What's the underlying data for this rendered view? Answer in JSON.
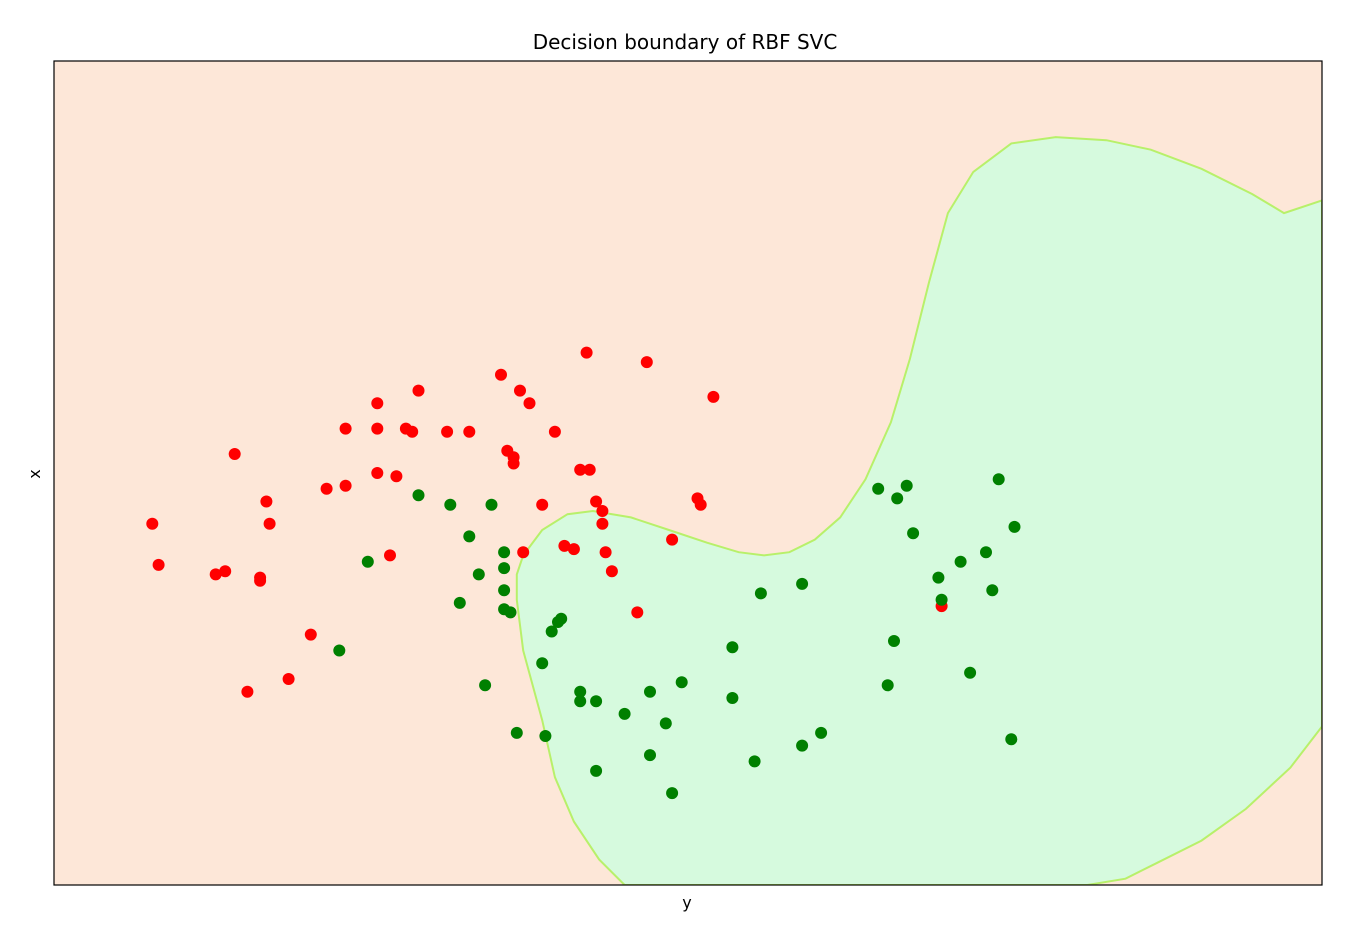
{
  "chart_data": {
    "type": "scatter",
    "title": "Decision boundary of RBF SVC",
    "xlabel": "y",
    "ylabel": "x",
    "xlim": [
      -1.5,
      2.5
    ],
    "ylim": [
      -1.0,
      1.6
    ],
    "ticks": "none",
    "grid": false,
    "legend": "none",
    "colors": {
      "region_class_0": "#fde7d8",
      "region_class_1": "#d6fade",
      "boundary": "#b8f06a",
      "class_0": "#ff0000",
      "class_1": "#008000"
    },
    "decision_boundary": [
      [
        0.3,
        -1.0
      ],
      [
        0.22,
        -0.92
      ],
      [
        0.14,
        -0.8
      ],
      [
        0.08,
        -0.66
      ],
      [
        0.04,
        -0.48
      ],
      [
        -0.02,
        -0.26
      ],
      [
        -0.04,
        -0.1
      ],
      [
        -0.04,
        -0.02
      ],
      [
        -0.02,
        0.04
      ],
      [
        0.04,
        0.12
      ],
      [
        0.12,
        0.17
      ],
      [
        0.2,
        0.18
      ],
      [
        0.32,
        0.16
      ],
      [
        0.44,
        0.12
      ],
      [
        0.56,
        0.08
      ],
      [
        0.66,
        0.05
      ],
      [
        0.74,
        0.04
      ],
      [
        0.82,
        0.05
      ],
      [
        0.9,
        0.09
      ],
      [
        0.98,
        0.16
      ],
      [
        1.06,
        0.28
      ],
      [
        1.14,
        0.46
      ],
      [
        1.2,
        0.66
      ],
      [
        1.26,
        0.9
      ],
      [
        1.32,
        1.12
      ],
      [
        1.4,
        1.25
      ],
      [
        1.52,
        1.34
      ],
      [
        1.66,
        1.36
      ],
      [
        1.82,
        1.35
      ],
      [
        1.96,
        1.32
      ],
      [
        2.12,
        1.26
      ],
      [
        2.28,
        1.18
      ],
      [
        2.38,
        1.12
      ],
      [
        2.5,
        1.16
      ],
      [
        2.5,
        -0.5
      ],
      [
        2.4,
        -0.63
      ],
      [
        2.26,
        -0.76
      ],
      [
        2.12,
        -0.86
      ],
      [
        1.98,
        -0.93
      ],
      [
        1.88,
        -0.98
      ],
      [
        1.76,
        -1.0
      ]
    ],
    "series": [
      {
        "class": 0,
        "points": [
          [
            -1.19,
            0.14
          ],
          [
            -1.17,
            0.01
          ],
          [
            -0.93,
            0.36
          ],
          [
            -0.89,
            -0.39
          ],
          [
            -0.83,
            0.21
          ],
          [
            -0.82,
            0.14
          ],
          [
            -0.85,
            -0.03
          ],
          [
            -0.85,
            -0.04
          ],
          [
            -0.96,
            -0.01
          ],
          [
            -0.99,
            -0.02
          ],
          [
            -0.76,
            -0.35
          ],
          [
            -0.69,
            -0.21
          ],
          [
            -0.64,
            0.25
          ],
          [
            -0.58,
            0.44
          ],
          [
            -0.58,
            0.26
          ],
          [
            -0.48,
            0.3
          ],
          [
            -0.48,
            0.44
          ],
          [
            -0.48,
            0.52
          ],
          [
            -0.44,
            0.04
          ],
          [
            -0.42,
            0.29
          ],
          [
            -0.39,
            0.44
          ],
          [
            -0.37,
            0.43
          ],
          [
            -0.35,
            0.56
          ],
          [
            -0.26,
            0.43
          ],
          [
            -0.19,
            0.43
          ],
          [
            -0.09,
            0.61
          ],
          [
            -0.03,
            0.56
          ],
          [
            -0.07,
            0.37
          ],
          [
            -0.05,
            0.35
          ],
          [
            0.0,
            0.52
          ],
          [
            -0.05,
            0.33
          ],
          [
            -0.02,
            0.05
          ],
          [
            0.04,
            0.2
          ],
          [
            0.08,
            0.43
          ],
          [
            0.11,
            0.07
          ],
          [
            0.14,
            0.06
          ],
          [
            0.16,
            0.31
          ],
          [
            0.19,
            0.31
          ],
          [
            0.18,
            0.68
          ],
          [
            0.21,
            0.21
          ],
          [
            0.23,
            0.14
          ],
          [
            0.23,
            0.18
          ],
          [
            0.24,
            0.05
          ],
          [
            0.26,
            -0.01
          ],
          [
            0.37,
            0.65
          ],
          [
            0.34,
            -0.14
          ],
          [
            0.45,
            0.09
          ],
          [
            0.58,
            0.54
          ],
          [
            0.53,
            0.22
          ],
          [
            0.54,
            0.2
          ],
          [
            1.3,
            -0.12
          ]
        ]
      },
      {
        "class": 1,
        "points": [
          [
            -0.35,
            0.23
          ],
          [
            -0.25,
            0.2
          ],
          [
            -0.12,
            0.2
          ],
          [
            -0.19,
            0.1
          ],
          [
            -0.51,
            0.02
          ],
          [
            -0.16,
            -0.02
          ],
          [
            -0.22,
            -0.11
          ],
          [
            -0.6,
            -0.26
          ],
          [
            -0.14,
            -0.37
          ],
          [
            -0.08,
            -0.07
          ],
          [
            -0.08,
            -0.13
          ],
          [
            -0.06,
            -0.14
          ],
          [
            -0.08,
            0.05
          ],
          [
            -0.08,
            0.0
          ],
          [
            -0.04,
            -0.52
          ],
          [
            0.04,
            -0.3
          ],
          [
            0.05,
            -0.53
          ],
          [
            0.07,
            -0.2
          ],
          [
            0.09,
            -0.17
          ],
          [
            0.1,
            -0.16
          ],
          [
            0.16,
            -0.39
          ],
          [
            0.16,
            -0.42
          ],
          [
            0.21,
            -0.42
          ],
          [
            0.21,
            -0.64
          ],
          [
            0.3,
            -0.46
          ],
          [
            0.38,
            -0.39
          ],
          [
            0.43,
            -0.49
          ],
          [
            0.48,
            -0.36
          ],
          [
            0.45,
            -0.71
          ],
          [
            0.38,
            -0.59
          ],
          [
            0.64,
            -0.25
          ],
          [
            0.64,
            -0.41
          ],
          [
            0.71,
            -0.61
          ],
          [
            0.73,
            -0.08
          ],
          [
            0.86,
            -0.56
          ],
          [
            0.92,
            -0.52
          ],
          [
            0.86,
            -0.05
          ],
          [
            1.16,
            0.22
          ],
          [
            1.19,
            0.26
          ],
          [
            1.1,
            0.25
          ],
          [
            1.21,
            0.11
          ],
          [
            1.3,
            -0.1
          ],
          [
            1.13,
            -0.37
          ],
          [
            1.15,
            -0.23
          ],
          [
            1.29,
            -0.03
          ],
          [
            1.36,
            0.02
          ],
          [
            1.39,
            -0.33
          ],
          [
            1.44,
            0.05
          ],
          [
            1.46,
            -0.07
          ],
          [
            1.48,
            0.28
          ],
          [
            1.53,
            0.13
          ],
          [
            1.52,
            -0.54
          ]
        ]
      }
    ]
  }
}
